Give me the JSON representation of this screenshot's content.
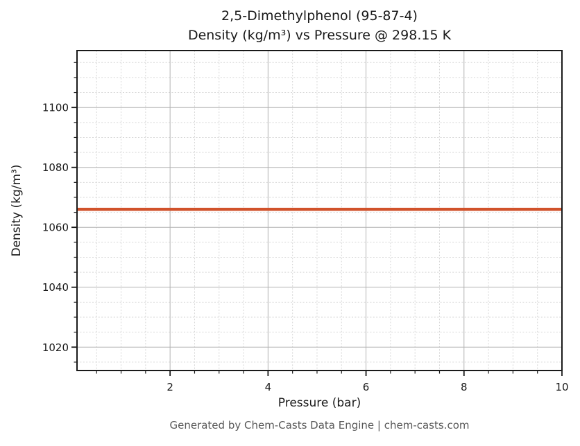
{
  "title": {
    "line1": "2,5-Dimethylphenol (95-87-4)",
    "line2": "Density (kg/m³) vs Pressure @ 298.15 K"
  },
  "footer": "Generated by Chem-Casts Data Engine | chem-casts.com",
  "chart_data": {
    "type": "line",
    "title": "2,5-Dimethylphenol (95-87-4)\nDensity (kg/m³) vs Pressure @ 298.15 K",
    "xlabel": "Pressure (bar)",
    "ylabel": "Density (kg/m³)",
    "series": [
      {
        "name": "density-vs-pressure",
        "x": [
          0.1,
          10
        ],
        "y": [
          1066,
          1066
        ],
        "color": "#d1522b",
        "linewidth": 4.5
      }
    ],
    "xlim": [
      0.1,
      10
    ],
    "ylim": [
      1012.2,
      1119.0
    ],
    "xticks": [
      2,
      4,
      6,
      8,
      10
    ],
    "yticks": [
      1020,
      1040,
      1060,
      1080,
      1100
    ],
    "x_minor_step": 0.5,
    "y_minor_step": 5,
    "grid": {
      "major": true,
      "minor": true
    },
    "legend_position": "none",
    "style": {
      "spine_color": "#1a1a1a",
      "tick_color": "#1a1a1a",
      "tick_label_color": "#1a1a1a",
      "major_grid_color": "#b2b2b2",
      "minor_grid_color": "#d6d6d6",
      "background": "#ffffff"
    }
  }
}
